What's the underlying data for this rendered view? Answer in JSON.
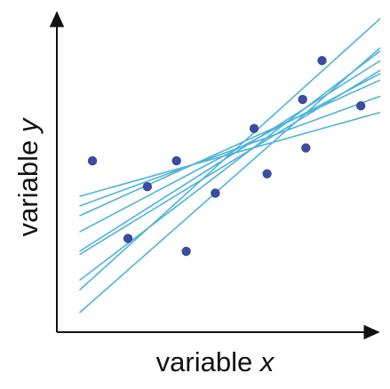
{
  "chart_data": {
    "type": "scatter",
    "title": "",
    "xlabel": {
      "prefix": "variable ",
      "var": "x"
    },
    "ylabel": {
      "prefix": "variable ",
      "var": "y"
    },
    "xlim": [
      0,
      10
    ],
    "ylim": [
      0,
      10
    ],
    "grid": false,
    "tick_labels": false,
    "points": [
      {
        "x": 1.1,
        "y": 5.3
      },
      {
        "x": 2.2,
        "y": 2.9
      },
      {
        "x": 2.8,
        "y": 4.5
      },
      {
        "x": 3.7,
        "y": 5.3
      },
      {
        "x": 4.0,
        "y": 2.5
      },
      {
        "x": 4.9,
        "y": 4.3
      },
      {
        "x": 6.1,
        "y": 6.3
      },
      {
        "x": 6.5,
        "y": 4.9
      },
      {
        "x": 7.6,
        "y": 7.2
      },
      {
        "x": 7.7,
        "y": 5.7
      },
      {
        "x": 8.2,
        "y": 8.4
      },
      {
        "x": 9.4,
        "y": 7.0
      }
    ],
    "fit_lines": [
      {
        "x0": 0.7,
        "x1": 10.0,
        "y0": 0.6,
        "y1": 8.8
      },
      {
        "x0": 0.7,
        "x1": 10.0,
        "y0": 1.3,
        "y1": 9.7
      },
      {
        "x0": 0.7,
        "x1": 10.0,
        "y0": 1.6,
        "y1": 8.7
      },
      {
        "x0": 0.7,
        "x1": 10.0,
        "y0": 2.4,
        "y1": 8.1
      },
      {
        "x0": 0.7,
        "x1": 10.0,
        "y0": 2.5,
        "y1": 8.4
      },
      {
        "x0": 0.7,
        "x1": 10.0,
        "y0": 3.1,
        "y1": 8.0
      },
      {
        "x0": 0.7,
        "x1": 10.0,
        "y0": 3.6,
        "y1": 7.8
      },
      {
        "x0": 0.7,
        "x1": 10.0,
        "y0": 3.9,
        "y1": 7.3
      },
      {
        "x0": 0.7,
        "x1": 10.0,
        "y0": 4.2,
        "y1": 6.8
      }
    ],
    "colors": {
      "points": "#3a4ba0",
      "lines": "#4fb3d9",
      "axes": "#111111"
    }
  }
}
